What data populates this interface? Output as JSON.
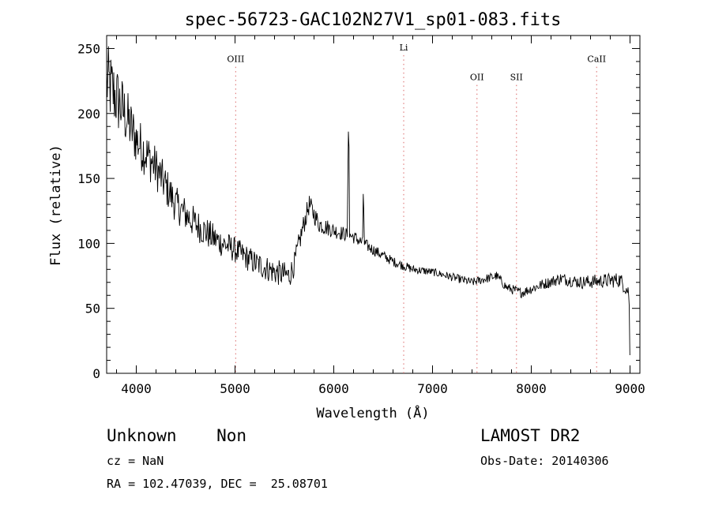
{
  "chart_data": {
    "type": "line",
    "title": "spec-56723-GAC102N27V1_sp01-083.fits",
    "xlabel": "Wavelength (Å)",
    "ylabel": "Flux (relative)",
    "xlim": [
      3700,
      9100
    ],
    "ylim": [
      0,
      260
    ],
    "xticks": [
      4000,
      5000,
      6000,
      7000,
      8000,
      9000
    ],
    "yticks": [
      0,
      50,
      100,
      150,
      200,
      250
    ],
    "grid": false,
    "lines": [
      {
        "label": "OIII",
        "x": 5007,
        "label_y": 242
      },
      {
        "label": "Li",
        "x": 6708,
        "label_y": 251
      },
      {
        "label": "OII",
        "x": 7450,
        "label_y": 228
      },
      {
        "label": "SII",
        "x": 7850,
        "label_y": 228
      },
      {
        "label": "CaII",
        "x": 8662,
        "label_y": 242
      }
    ],
    "spikes": [
      {
        "x": 6150,
        "y": 198
      },
      {
        "x": 6300,
        "y": 150
      }
    ],
    "continuum": [
      {
        "x": 3700,
        "y": 225
      },
      {
        "x": 3850,
        "y": 205
      },
      {
        "x": 4000,
        "y": 180
      },
      {
        "x": 4200,
        "y": 158
      },
      {
        "x": 4400,
        "y": 130
      },
      {
        "x": 4600,
        "y": 115
      },
      {
        "x": 4800,
        "y": 103
      },
      {
        "x": 5000,
        "y": 95
      },
      {
        "x": 5200,
        "y": 85
      },
      {
        "x": 5400,
        "y": 78
      },
      {
        "x": 5550,
        "y": 75
      },
      {
        "x": 5600,
        "y": 84
      },
      {
        "x": 5680,
        "y": 110
      },
      {
        "x": 5750,
        "y": 130
      },
      {
        "x": 5850,
        "y": 115
      },
      {
        "x": 6000,
        "y": 110
      },
      {
        "x": 6200,
        "y": 105
      },
      {
        "x": 6400,
        "y": 95
      },
      {
        "x": 6600,
        "y": 86
      },
      {
        "x": 6800,
        "y": 80
      },
      {
        "x": 7000,
        "y": 78
      },
      {
        "x": 7200,
        "y": 74
      },
      {
        "x": 7400,
        "y": 70
      },
      {
        "x": 7650,
        "y": 75
      },
      {
        "x": 7750,
        "y": 66
      },
      {
        "x": 7900,
        "y": 62
      },
      {
        "x": 8100,
        "y": 68
      },
      {
        "x": 8300,
        "y": 73
      },
      {
        "x": 8500,
        "y": 70
      },
      {
        "x": 8700,
        "y": 71
      },
      {
        "x": 8900,
        "y": 72
      },
      {
        "x": 8990,
        "y": 62
      },
      {
        "x": 9000,
        "y": 2
      }
    ],
    "noise_amplitude": [
      {
        "x": 3700,
        "y": 30
      },
      {
        "x": 4000,
        "y": 20
      },
      {
        "x": 4400,
        "y": 14
      },
      {
        "x": 5000,
        "y": 10
      },
      {
        "x": 5500,
        "y": 10
      },
      {
        "x": 6000,
        "y": 6
      },
      {
        "x": 6500,
        "y": 4
      },
      {
        "x": 7000,
        "y": 3
      },
      {
        "x": 8000,
        "y": 4
      },
      {
        "x": 8900,
        "y": 6
      }
    ]
  },
  "info": {
    "class_text": "Unknown    Non",
    "survey": "LAMOST DR2",
    "cz": "cz = NaN",
    "obs_date": "Obs-Date: 20140306",
    "coords": "RA = 102.47039, DEC =  25.08701"
  }
}
